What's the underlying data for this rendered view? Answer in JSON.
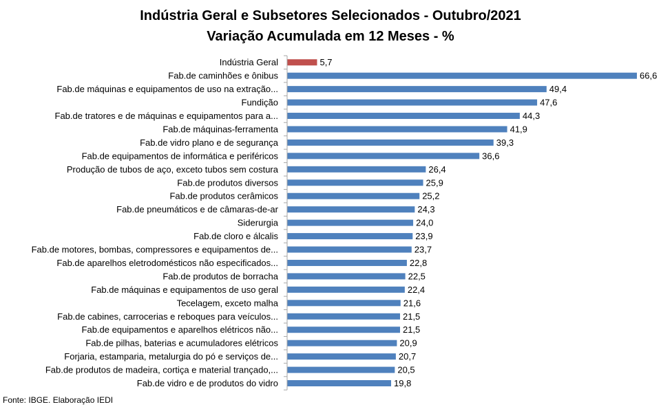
{
  "chart_data": {
    "type": "bar",
    "orientation": "horizontal",
    "title": "Indústria Geral e Subsetores Selecionados - Outubro/2021",
    "subtitle": "Variação Acumulada em 12 Meses - %",
    "categories": [
      "Indústria Geral",
      "Fab.de caminhões e ônibus",
      "Fab.de máquinas e equipamentos de uso na extração...",
      "Fundição",
      "Fab.de tratores e de máquinas e equipamentos para a...",
      "Fab.de máquinas-ferramenta",
      "Fab.de vidro plano e de segurança",
      "Fab.de equipamentos de informática e periféricos",
      "Produção de tubos de aço, exceto tubos sem costura",
      "Fab.de produtos diversos",
      "Fab.de produtos cerâmicos",
      "Fab.de pneumáticos e de câmaras-de-ar",
      "Siderurgia",
      "Fab.de cloro e álcalis",
      "Fab.de motores, bombas, compressores e equipamentos de...",
      "Fab.de aparelhos eletrodomésticos não especificados...",
      "Fab.de produtos de borracha",
      "Fab.de máquinas e equipamentos de uso geral",
      "Tecelagem, exceto malha",
      "Fab.de cabines, carrocerias e reboques para veículos...",
      "Fab.de equipamentos e aparelhos elétricos não...",
      "Fab.de pilhas, baterias e acumuladores elétricos",
      "Forjaria, estamparia, metalurgia do pó e serviços de...",
      "Fab.de produtos de madeira, cortiça e material trançado,...",
      "Fab.de vidro e de produtos do vidro"
    ],
    "values": [
      5.7,
      66.6,
      49.4,
      47.6,
      44.3,
      41.9,
      39.3,
      36.6,
      26.4,
      25.9,
      25.2,
      24.3,
      24.0,
      23.9,
      23.7,
      22.8,
      22.5,
      22.4,
      21.6,
      21.5,
      21.5,
      20.9,
      20.7,
      20.5,
      19.8
    ],
    "value_labels": [
      "5,7",
      "66,6",
      "49,4",
      "47,6",
      "44,3",
      "41,9",
      "39,3",
      "36,6",
      "26,4",
      "25,9",
      "25,2",
      "24,3",
      "24,0",
      "23,9",
      "23,7",
      "22,8",
      "22,5",
      "22,4",
      "21,6",
      "21,5",
      "21,5",
      "20,9",
      "20,7",
      "20,5",
      "19,8"
    ],
    "xlim": [
      0,
      66.6
    ],
    "grid": false,
    "colors": {
      "highlight": "#c0504d",
      "default": "#4f81bd"
    },
    "highlight_index": 0
  },
  "source": "Fonte: IBGE. Elaboração IEDI"
}
